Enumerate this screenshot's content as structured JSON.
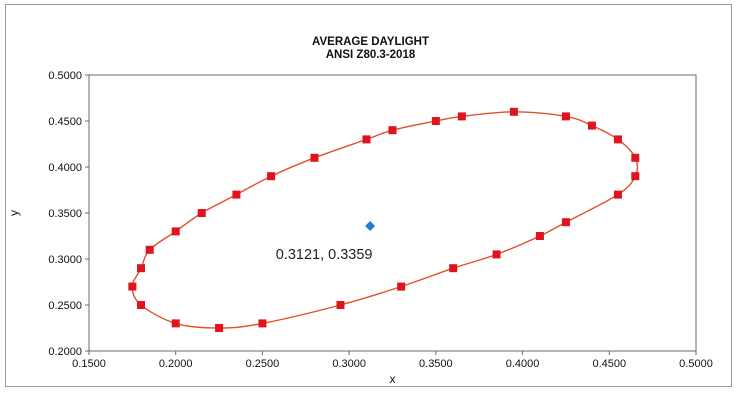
{
  "chart_data": {
    "type": "scatter",
    "title": "AVERAGE DAYLIGHT",
    "subtitle": "ANSI Z80.3-2018",
    "xlabel": "x",
    "ylabel": "y",
    "xlim": [
      0.15,
      0.5
    ],
    "ylim": [
      0.2,
      0.5
    ],
    "x_ticks": [
      "0.1500",
      "0.2000",
      "0.2500",
      "0.3000",
      "0.3500",
      "0.4000",
      "0.4500",
      "0.5000"
    ],
    "y_ticks": [
      "0.2000",
      "0.2500",
      "0.3000",
      "0.3500",
      "0.4000",
      "0.4500",
      "0.5000"
    ],
    "grid": false,
    "colors": {
      "boundary_line": "#e0502a",
      "boundary_marker": "#e0141e",
      "center_marker": "#2a78d6"
    },
    "series": [
      {
        "type": "line",
        "marker": "square",
        "points": [
          [
            0.175,
            0.27
          ],
          [
            0.18,
            0.29
          ],
          [
            0.185,
            0.31
          ],
          [
            0.2,
            0.33
          ],
          [
            0.215,
            0.35
          ],
          [
            0.235,
            0.37
          ],
          [
            0.255,
            0.39
          ],
          [
            0.28,
            0.41
          ],
          [
            0.31,
            0.43
          ],
          [
            0.325,
            0.44
          ],
          [
            0.35,
            0.45
          ],
          [
            0.365,
            0.455
          ],
          [
            0.395,
            0.46
          ],
          [
            0.425,
            0.455
          ],
          [
            0.44,
            0.445
          ],
          [
            0.455,
            0.43
          ],
          [
            0.465,
            0.41
          ],
          [
            0.465,
            0.39
          ],
          [
            0.455,
            0.37
          ],
          [
            0.425,
            0.34
          ],
          [
            0.41,
            0.325
          ],
          [
            0.385,
            0.305
          ],
          [
            0.36,
            0.29
          ],
          [
            0.33,
            0.27
          ],
          [
            0.295,
            0.25
          ],
          [
            0.25,
            0.23
          ],
          [
            0.225,
            0.225
          ],
          [
            0.2,
            0.23
          ],
          [
            0.18,
            0.25
          ]
        ]
      },
      {
        "type": "scatter",
        "marker": "diamond",
        "points": [
          [
            0.3121,
            0.3359
          ]
        ],
        "label": "0.3121, 0.3359"
      }
    ]
  }
}
